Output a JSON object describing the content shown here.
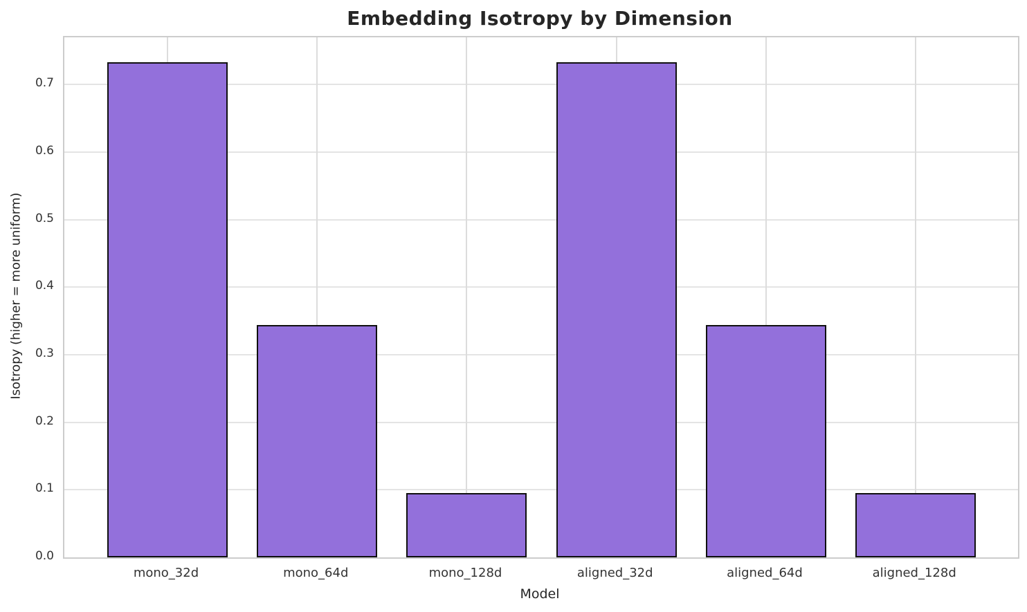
{
  "chart_data": {
    "type": "bar",
    "title": "Embedding Isotropy by Dimension",
    "xlabel": "Model",
    "ylabel": "Isotropy (higher = more uniform)",
    "categories": [
      "mono_32d",
      "mono_64d",
      "mono_128d",
      "aligned_32d",
      "aligned_64d",
      "aligned_128d"
    ],
    "values": [
      0.733,
      0.344,
      0.095,
      0.733,
      0.344,
      0.095
    ],
    "ylim": [
      0,
      0.77
    ],
    "yticks": [
      0.0,
      0.1,
      0.2,
      0.3,
      0.4,
      0.5,
      0.6,
      0.7
    ],
    "ytick_labels": [
      "0.0",
      "0.1",
      "0.2",
      "0.3",
      "0.4",
      "0.5",
      "0.6",
      "0.7"
    ],
    "grid": true,
    "legend": "none",
    "colors": {
      "bar_fill": "#9370DB",
      "bar_edge": "#0f0f0f",
      "grid": "#e0e0e0",
      "spine": "#cccccc",
      "text": "#262626"
    }
  }
}
